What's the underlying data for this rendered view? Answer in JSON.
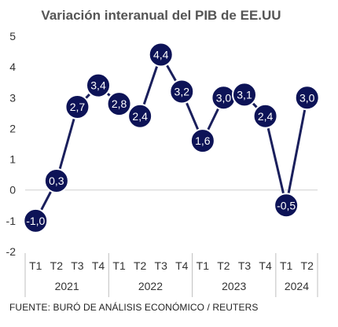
{
  "chart_data": {
    "type": "line",
    "title": "Variación interanual del PIB de EE.UU",
    "categories": [
      "T1",
      "T2",
      "T3",
      "T4",
      "T1",
      "T2",
      "T3",
      "T4",
      "T1",
      "T2",
      "T3",
      "T4",
      "T1",
      "T2"
    ],
    "years": [
      {
        "label": "2021",
        "count": 4
      },
      {
        "label": "2022",
        "count": 4
      },
      {
        "label": "2023",
        "count": 4
      },
      {
        "label": "2024",
        "count": 2
      }
    ],
    "values": [
      -1.0,
      0.3,
      2.7,
      3.4,
      2.8,
      2.4,
      4.4,
      3.2,
      1.6,
      3.0,
      3.1,
      2.4,
      -0.5,
      3.0
    ],
    "value_labels": [
      "-1,0",
      "0,3",
      "2,7",
      "3,4",
      "2,8",
      "2,4",
      "4,4",
      "3,2",
      "1,6",
      "3,0",
      "3,1",
      "2,4",
      "-0,5",
      "3,0"
    ],
    "ylim": [
      -2,
      5
    ],
    "yticks": [
      -2,
      -1,
      0,
      1,
      2,
      3,
      4,
      5
    ],
    "grid": false,
    "legend": "none",
    "colors": {
      "marker": "#0d1357",
      "line": "#1a1f5c",
      "zero_line": "#d0d0d0",
      "axis": "#bfbfbf",
      "title": "#555555"
    }
  },
  "source": "FUENTE: BURÓ DE ANÁLISIS ECONÓMICO / REUTERS"
}
